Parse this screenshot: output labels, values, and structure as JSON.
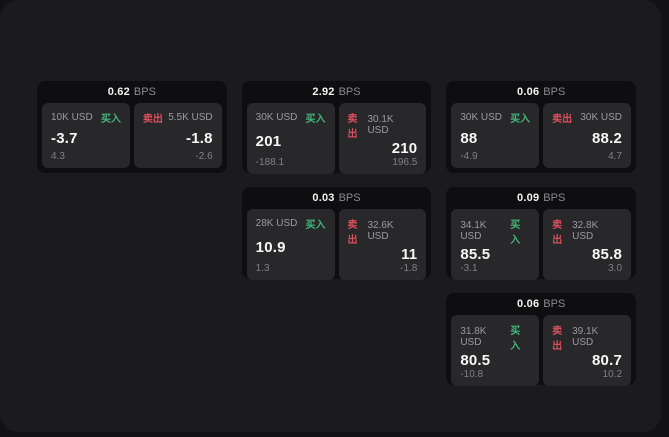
{
  "labels": {
    "buy": "买入",
    "sell": "卖出",
    "bps_unit": "BPS"
  },
  "colors": {
    "buy_green": "#43b77a",
    "sell_red": "#d94f5c",
    "surface": "#1b1b1d",
    "card_background": "#0e0e10",
    "panel_background": "#28282a"
  },
  "cards": [
    {
      "bps": "0.62",
      "buy": {
        "size": "10K USD",
        "price": "-3.7",
        "delta": "4.3"
      },
      "sell": {
        "size": "5.5K USD",
        "price": "-1.8",
        "delta": "-2.6"
      }
    },
    {
      "bps": "2.92",
      "buy": {
        "size": "30K USD",
        "price": "201",
        "delta": "-188.1"
      },
      "sell": {
        "size": "30.1K USD",
        "price": "210",
        "delta": "196.5"
      }
    },
    {
      "bps": "0.06",
      "buy": {
        "size": "30K USD",
        "price": "88",
        "delta": "-4.9"
      },
      "sell": {
        "size": "30K USD",
        "price": "88.2",
        "delta": "4.7"
      }
    },
    {
      "bps": "0.03",
      "buy": {
        "size": "28K USD",
        "price": "10.9",
        "delta": "1.3"
      },
      "sell": {
        "size": "32.6K USD",
        "price": "11",
        "delta": "-1.8"
      }
    },
    {
      "bps": "0.09",
      "buy": {
        "size": "34.1K USD",
        "price": "85.5",
        "delta": "-3.1"
      },
      "sell": {
        "size": "32.8K USD",
        "price": "85.8",
        "delta": "3.0"
      }
    },
    {
      "bps": "0.06",
      "buy": {
        "size": "31.8K USD",
        "price": "80.5",
        "delta": "-10.8"
      },
      "sell": {
        "size": "39.1K USD",
        "price": "80.7",
        "delta": "10.2"
      }
    }
  ]
}
